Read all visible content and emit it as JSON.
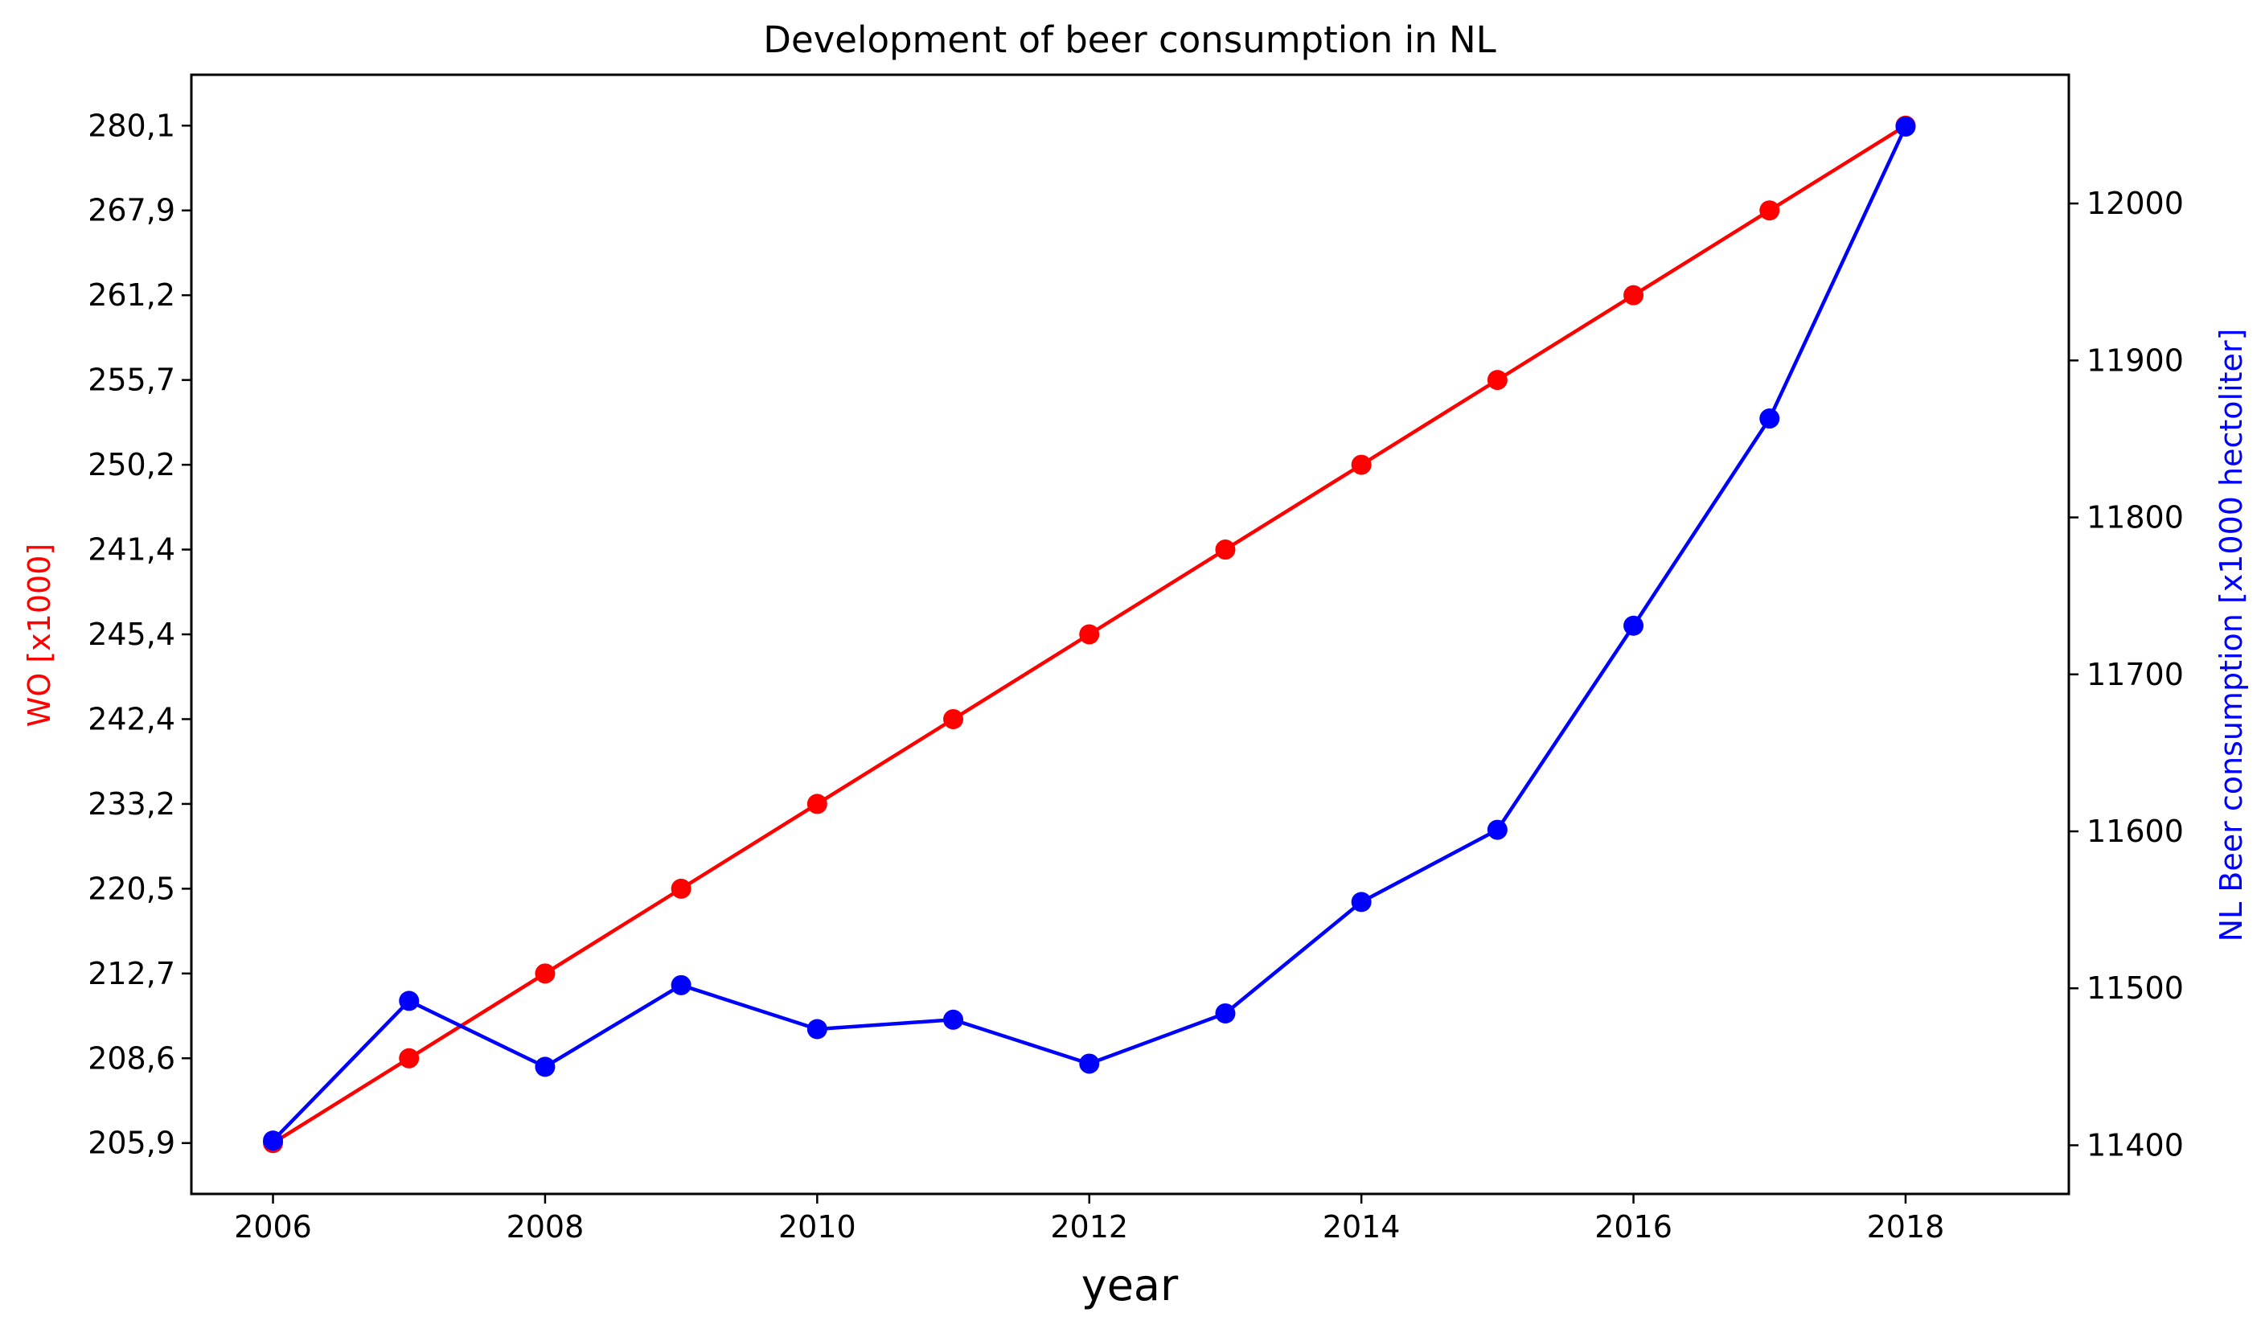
{
  "chart_data": {
    "type": "line",
    "title": "Development of beer consumption in NL",
    "xlabel": "year",
    "ylabel_left": "WO [x1000]",
    "ylabel_right": "NL Beer consumption [x1000 hectoliter]",
    "x": [
      2006,
      2007,
      2008,
      2009,
      2010,
      2011,
      2012,
      2013,
      2014,
      2015,
      2016,
      2017,
      2018
    ],
    "x_ticks": [
      2006,
      2008,
      2010,
      2012,
      2014,
      2016,
      2018
    ],
    "xlim": [
      2005.4,
      2019.2
    ],
    "left_axis": {
      "type": "categorical",
      "categories": [
        "205,9",
        "208,6",
        "212,7",
        "220,5",
        "233,2",
        "242,4",
        "245,4",
        "241,4",
        "250,2",
        "255,7",
        "261,2",
        "267,9",
        "280,1"
      ],
      "ylim": [
        -0.6,
        12.6
      ]
    },
    "right_axis": {
      "ticks": [
        11400,
        11500,
        11600,
        11700,
        11800,
        11900,
        12000
      ],
      "ylim": [
        11369,
        12082
      ]
    },
    "series": [
      {
        "name": "WO [x1000]",
        "axis": "left",
        "color": "#ff0000",
        "values": [
          "205,9",
          "208,6",
          "212,7",
          "220,5",
          "233,2",
          "242,4",
          "245,4",
          "241,4",
          "250,2",
          "255,7",
          "261,2",
          "267,9",
          "280,1"
        ]
      },
      {
        "name": "NL Beer consumption [x1000 hectoliter]",
        "axis": "right",
        "color": "#0000ff",
        "values": [
          11403,
          11492,
          11450,
          11502,
          11474,
          11480,
          11452,
          11484,
          11555,
          11601,
          11731,
          11863,
          12049
        ]
      }
    ],
    "grid": false,
    "legend": "none"
  }
}
